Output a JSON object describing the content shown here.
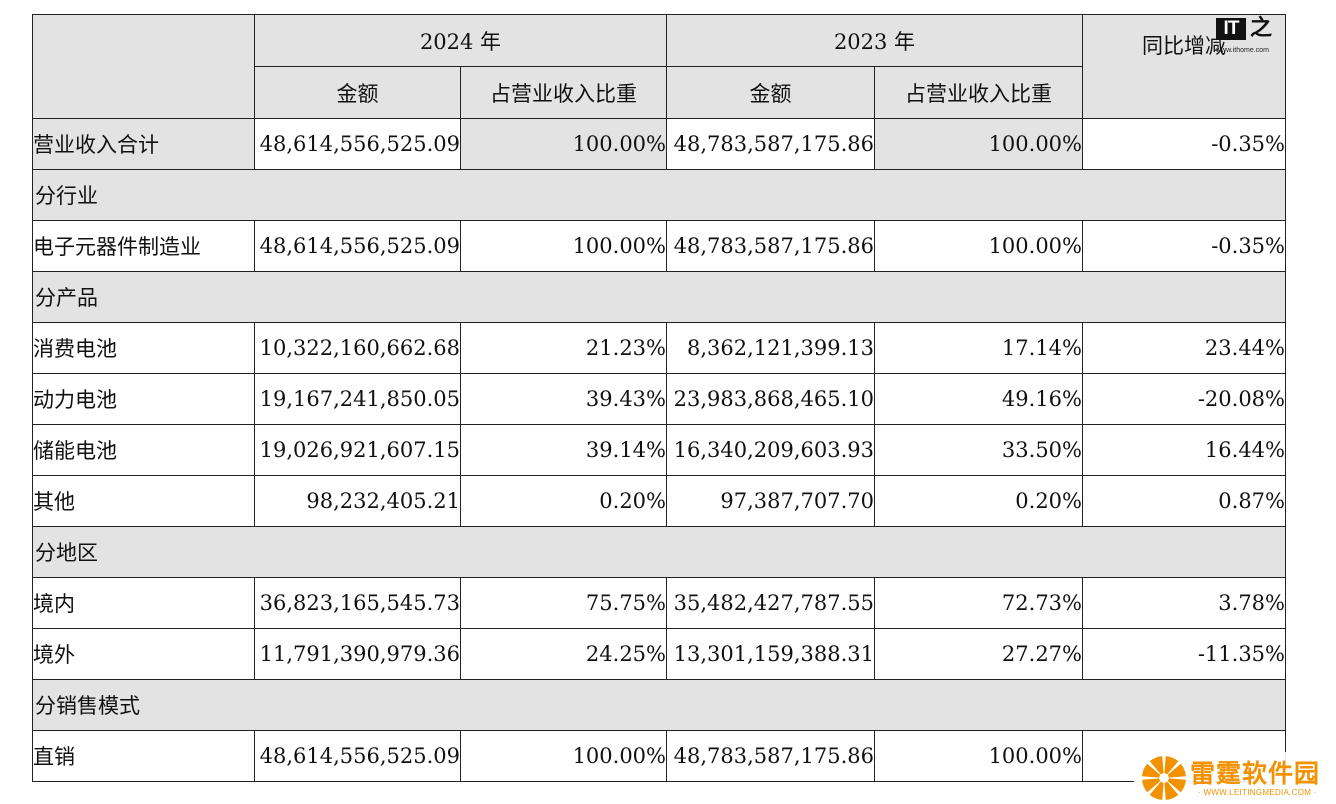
{
  "header": {
    "year_2024": "2024 年",
    "year_2023": "2023 年",
    "amount": "金额",
    "share": "占营业收入比重",
    "yoy": "同比增减"
  },
  "total": {
    "label": "营业收入合计",
    "a2024": "48,614,556,525.09",
    "s2024": "100.00%",
    "a2023": "48,783,587,175.86",
    "s2023": "100.00%",
    "yoy": "-0.35%"
  },
  "sections": [
    {
      "title": "分行业",
      "rows": [
        {
          "label": "电子元器件制造业",
          "a2024": "48,614,556,525.09",
          "s2024": "100.00%",
          "a2023": "48,783,587,175.86",
          "s2023": "100.00%",
          "yoy": "-0.35%"
        }
      ]
    },
    {
      "title": "分产品",
      "rows": [
        {
          "label": "消费电池",
          "a2024": "10,322,160,662.68",
          "s2024": "21.23%",
          "a2023": "8,362,121,399.13",
          "s2023": "17.14%",
          "yoy": "23.44%"
        },
        {
          "label": "动力电池",
          "a2024": "19,167,241,850.05",
          "s2024": "39.43%",
          "a2023": "23,983,868,465.10",
          "s2023": "49.16%",
          "yoy": "-20.08%"
        },
        {
          "label": "储能电池",
          "a2024": "19,026,921,607.15",
          "s2024": "39.14%",
          "a2023": "16,340,209,603.93",
          "s2023": "33.50%",
          "yoy": "16.44%"
        },
        {
          "label": "其他",
          "a2024": "98,232,405.21",
          "s2024": "0.20%",
          "a2023": "97,387,707.70",
          "s2023": "0.20%",
          "yoy": "0.87%"
        }
      ]
    },
    {
      "title": "分地区",
      "rows": [
        {
          "label": "境内",
          "a2024": "36,823,165,545.73",
          "s2024": "75.75%",
          "a2023": "35,482,427,787.55",
          "s2023": "72.73%",
          "yoy": "3.78%"
        },
        {
          "label": "境外",
          "a2024": "11,791,390,979.36",
          "s2024": "24.25%",
          "a2023": "13,301,159,388.31",
          "s2023": "27.27%",
          "yoy": "-11.35%"
        }
      ]
    },
    {
      "title": "分销售模式",
      "rows": [
        {
          "label": "直销",
          "a2024": "48,614,556,525.09",
          "s2024": "100.00%",
          "a2023": "48,783,587,175.86",
          "s2023": "100.00%",
          "yoy": ""
        }
      ]
    }
  ],
  "watermarks": {
    "ithome_box": "IT",
    "ithome_char": "之家",
    "ithome_url": "www.ithome.com",
    "leiting_name": "雷霆软件园",
    "leiting_url": "WWW.LEITINGMEDIA.COM",
    "leiting_color": "#f29200"
  }
}
